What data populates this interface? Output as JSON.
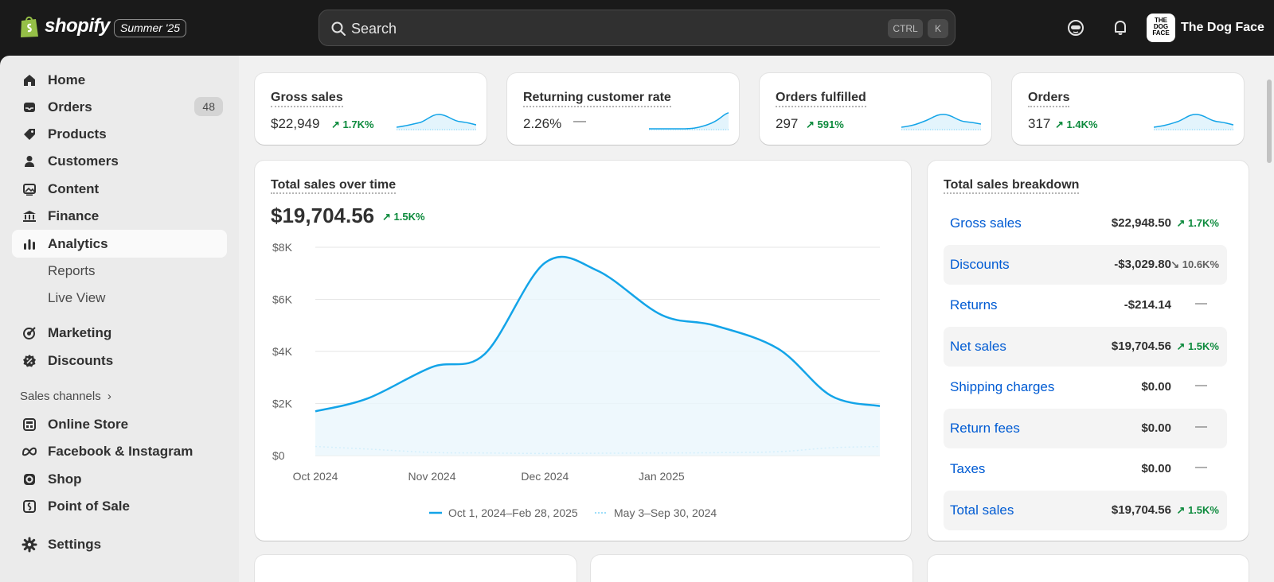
{
  "brand": {
    "wordmark": "shopify",
    "edition": "Summer '25"
  },
  "search": {
    "placeholder": "Search",
    "shortcut_ctrl": "CTRL",
    "shortcut_key": "K"
  },
  "store": {
    "name": "The Dog Face",
    "logo_text": "THE DOG FACE"
  },
  "sidebar": {
    "items": [
      {
        "label": "Home",
        "icon": "home-icon"
      },
      {
        "label": "Orders",
        "icon": "inbox-icon",
        "badge": "48"
      },
      {
        "label": "Products",
        "icon": "tag-icon"
      },
      {
        "label": "Customers",
        "icon": "person-icon"
      },
      {
        "label": "Content",
        "icon": "image-icon"
      },
      {
        "label": "Finance",
        "icon": "bank-icon"
      },
      {
        "label": "Analytics",
        "icon": "bar-chart-icon",
        "active": true
      },
      {
        "label": "Reports",
        "sub": true
      },
      {
        "label": "Live View",
        "sub": true
      },
      {
        "label": "Marketing",
        "icon": "target-icon"
      },
      {
        "label": "Discounts",
        "icon": "discount-icon"
      }
    ],
    "sales_channels_label": "Sales channels",
    "channels": [
      {
        "label": "Online Store",
        "icon": "store-icon"
      },
      {
        "label": "Facebook & Instagram",
        "icon": "meta-icon"
      },
      {
        "label": "Shop",
        "icon": "shop-icon"
      },
      {
        "label": "Point of Sale",
        "icon": "pos-icon"
      }
    ],
    "settings_label": "Settings"
  },
  "kpis": [
    {
      "title": "Gross sales",
      "value": "$22,949",
      "delta": "1.7K%",
      "trend": "up"
    },
    {
      "title": "Returning customer rate",
      "value": "2.26%",
      "delta": "—",
      "trend": "none"
    },
    {
      "title": "Orders fulfilled",
      "value": "297",
      "delta": "591%",
      "trend": "up"
    },
    {
      "title": "Orders",
      "value": "317",
      "delta": "1.4K%",
      "trend": "up"
    }
  ],
  "sales_chart": {
    "title": "Total sales over time",
    "total": "$19,704.56",
    "delta": "1.5K%",
    "legend_current": "Oct 1, 2024–Feb 28, 2025",
    "legend_previous": "May 3–Sep 30, 2024"
  },
  "chart_data": {
    "type": "line",
    "title": "Total sales over time",
    "x": [
      "2024-10-01",
      "2024-10-15",
      "2024-11-01",
      "2024-11-15",
      "2024-12-01",
      "2024-12-15",
      "2025-01-01",
      "2025-01-15",
      "2025-02-01",
      "2025-02-15",
      "2025-02-28"
    ],
    "x_tick_labels": [
      "Oct 2024",
      "Nov 2024",
      "Dec 2024",
      "Jan 2025"
    ],
    "y_tick_labels": [
      "$0",
      "$2K",
      "$4K",
      "$6K",
      "$8K"
    ],
    "ylim": [
      0,
      8000
    ],
    "series": [
      {
        "name": "Oct 1, 2024–Feb 28, 2025",
        "values": [
          1700,
          2200,
          3400,
          3900,
          7400,
          7100,
          5400,
          5000,
          4100,
          2300,
          1900
        ],
        "color": "#13a4e8",
        "style": "solid"
      },
      {
        "name": "May 3–Sep 30, 2024",
        "values": [
          350,
          250,
          120,
          100,
          80,
          90,
          100,
          110,
          150,
          300,
          350
        ],
        "color": "#7fd3f7",
        "style": "dotted"
      }
    ],
    "grid": true
  },
  "breakdown": {
    "title": "Total sales breakdown",
    "rows": [
      {
        "label": "Gross sales",
        "value": "$22,948.50",
        "delta": "1.7K%",
        "trend": "up"
      },
      {
        "label": "Discounts",
        "value": "-$3,029.80",
        "delta": "10.6K%",
        "trend": "down"
      },
      {
        "label": "Returns",
        "value": "-$214.14",
        "delta": "—",
        "trend": "none"
      },
      {
        "label": "Net sales",
        "value": "$19,704.56",
        "delta": "1.5K%",
        "trend": "up"
      },
      {
        "label": "Shipping charges",
        "value": "$0.00",
        "delta": "—",
        "trend": "none"
      },
      {
        "label": "Return fees",
        "value": "$0.00",
        "delta": "—",
        "trend": "none"
      },
      {
        "label": "Taxes",
        "value": "$0.00",
        "delta": "—",
        "trend": "none"
      },
      {
        "label": "Total sales",
        "value": "$19,704.56",
        "delta": "1.5K%",
        "trend": "up"
      }
    ]
  },
  "colors": {
    "accent_link": "#005bd3",
    "positive": "#0c8a3c",
    "chart_line": "#13a4e8",
    "brand_green": "#95bf47"
  }
}
